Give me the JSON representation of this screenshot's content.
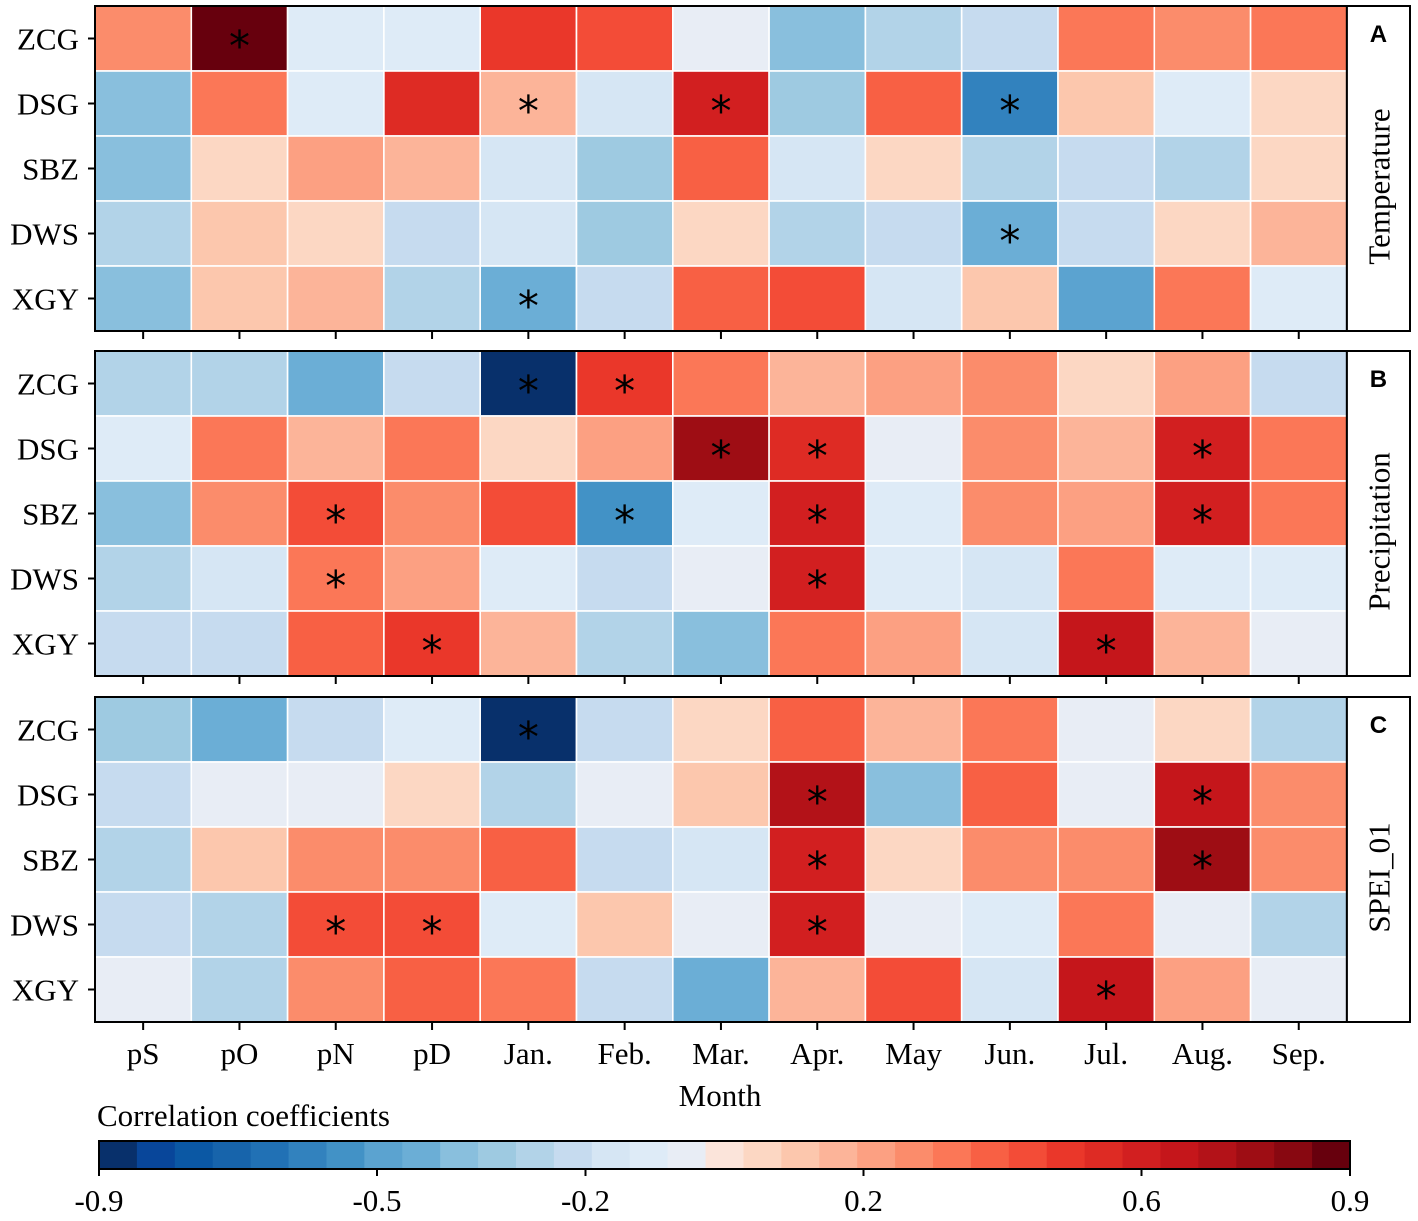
{
  "chart_data": {
    "type": "heatmap",
    "xlabel": "Month",
    "months": [
      "pS",
      "pO",
      "pN",
      "pD",
      "Jan.",
      "Feb.",
      "Mar.",
      "Apr.",
      "May",
      "Jun.",
      "Jul.",
      "Aug.",
      "Sep."
    ],
    "sites": [
      "ZCG",
      "DSG",
      "SBZ",
      "DWS",
      "XGY"
    ],
    "colorbar": {
      "title": "Correlation coefficients",
      "range": [
        -0.9,
        0.9
      ],
      "ticks": [
        -0.9,
        -0.5,
        -0.2,
        0.2,
        0.6,
        0.9
      ],
      "tick_labels": [
        "-0.9",
        "-0.5",
        "-0.2",
        "0.2",
        "0.6",
        "0.9"
      ],
      "colors": [
        "#08306b",
        "#08469a",
        "#0b58a4",
        "#1764ab",
        "#2171b5",
        "#3282be",
        "#4292c6",
        "#5ba3d0",
        "#6baed6",
        "#89bfdd",
        "#9ecae1",
        "#b2d3e8",
        "#c6dbef",
        "#d6e6f4",
        "#deebf7",
        "#e8edf5",
        "#fbe4da",
        "#fcd7c3",
        "#fcc7ad",
        "#fcb499",
        "#fca082",
        "#fb8c6b",
        "#fb7757",
        "#f86044",
        "#f34c37",
        "#ea372a",
        "#de2b24",
        "#d21f20",
        "#c5161b",
        "#b31218",
        "#9e0d14",
        "#880811",
        "#67000d"
      ]
    },
    "panels": [
      {
        "letter": "A",
        "variable": "Temperature",
        "values": [
          [
            0.28,
            0.88,
            -0.1,
            -0.1,
            0.48,
            0.42,
            -0.04,
            -0.4,
            -0.28,
            -0.22,
            0.31,
            0.26,
            0.32
          ],
          [
            -0.4,
            0.34,
            -0.1,
            0.54,
            0.16,
            -0.16,
            0.58,
            -0.33,
            0.39,
            -0.6,
            0.12,
            -0.12,
            0.05
          ],
          [
            -0.38,
            0.06,
            0.24,
            0.18,
            -0.18,
            -0.34,
            0.38,
            -0.16,
            0.08,
            -0.3,
            -0.22,
            -0.28,
            0.06
          ],
          [
            -0.3,
            0.12,
            0.07,
            -0.22,
            -0.18,
            -0.34,
            0.08,
            -0.26,
            -0.22,
            -0.43,
            -0.22,
            0.08,
            0.18
          ],
          [
            -0.36,
            0.12,
            0.17,
            -0.29,
            -0.46,
            -0.22,
            0.4,
            0.42,
            -0.18,
            0.13,
            -0.49,
            0.3,
            -0.11
          ]
        ],
        "significant": [
          [
            1,
            4
          ],
          [
            1,
            6
          ],
          [
            1,
            9
          ],
          [
            0,
            1
          ],
          [
            3,
            9
          ],
          [
            4,
            4
          ]
        ]
      },
      {
        "letter": "B",
        "variable": "Precipitation",
        "values": [
          [
            -0.3,
            -0.3,
            -0.42,
            -0.24,
            -0.9,
            0.5,
            0.34,
            0.17,
            0.2,
            0.26,
            0.06,
            0.24,
            -0.2
          ],
          [
            -0.1,
            0.3,
            0.14,
            0.34,
            0.07,
            0.22,
            0.78,
            0.54,
            -0.04,
            0.26,
            0.14,
            0.6,
            0.33
          ],
          [
            -0.36,
            0.28,
            0.44,
            0.28,
            0.44,
            -0.53,
            -0.1,
            0.58,
            -0.1,
            0.26,
            0.2,
            0.6,
            0.33
          ],
          [
            -0.3,
            -0.18,
            0.34,
            0.2,
            -0.1,
            -0.22,
            -0.06,
            0.58,
            -0.1,
            -0.18,
            0.34,
            -0.1,
            -0.1
          ],
          [
            -0.22,
            -0.22,
            0.4,
            0.5,
            0.18,
            -0.3,
            -0.36,
            0.3,
            0.2,
            -0.16,
            0.66,
            0.18,
            -0.06
          ]
        ],
        "significant": [
          [
            0,
            4
          ],
          [
            0,
            5
          ],
          [
            1,
            6
          ],
          [
            1,
            7
          ],
          [
            1,
            11
          ],
          [
            2,
            2
          ],
          [
            2,
            5
          ],
          [
            2,
            7
          ],
          [
            2,
            11
          ],
          [
            3,
            2
          ],
          [
            3,
            7
          ],
          [
            4,
            3
          ],
          [
            4,
            10
          ]
        ]
      },
      {
        "letter": "C",
        "variable": "SPEI_01",
        "values": [
          [
            -0.32,
            -0.46,
            -0.2,
            -0.1,
            -0.9,
            -0.24,
            0.07,
            0.38,
            0.14,
            0.3,
            -0.04,
            0.06,
            -0.26
          ],
          [
            -0.2,
            -0.06,
            -0.06,
            0.07,
            -0.28,
            -0.06,
            0.09,
            0.72,
            -0.36,
            0.36,
            -0.04,
            0.68,
            0.28
          ],
          [
            -0.28,
            0.13,
            0.26,
            0.26,
            0.38,
            -0.24,
            -0.18,
            0.6,
            0.08,
            0.26,
            0.28,
            0.76,
            0.28
          ],
          [
            -0.22,
            -0.26,
            0.42,
            0.46,
            -0.12,
            0.12,
            -0.06,
            0.58,
            -0.06,
            -0.12,
            0.34,
            -0.06,
            -0.26
          ],
          [
            -0.04,
            -0.3,
            0.26,
            0.4,
            0.32,
            -0.24,
            -0.44,
            0.14,
            0.42,
            -0.18,
            0.66,
            0.2,
            -0.06
          ]
        ],
        "significant": [
          [
            0,
            4
          ],
          [
            1,
            7
          ],
          [
            1,
            11
          ],
          [
            2,
            7
          ],
          [
            2,
            11
          ],
          [
            3,
            2
          ],
          [
            3,
            3
          ],
          [
            3,
            7
          ],
          [
            4,
            10
          ]
        ]
      }
    ]
  }
}
